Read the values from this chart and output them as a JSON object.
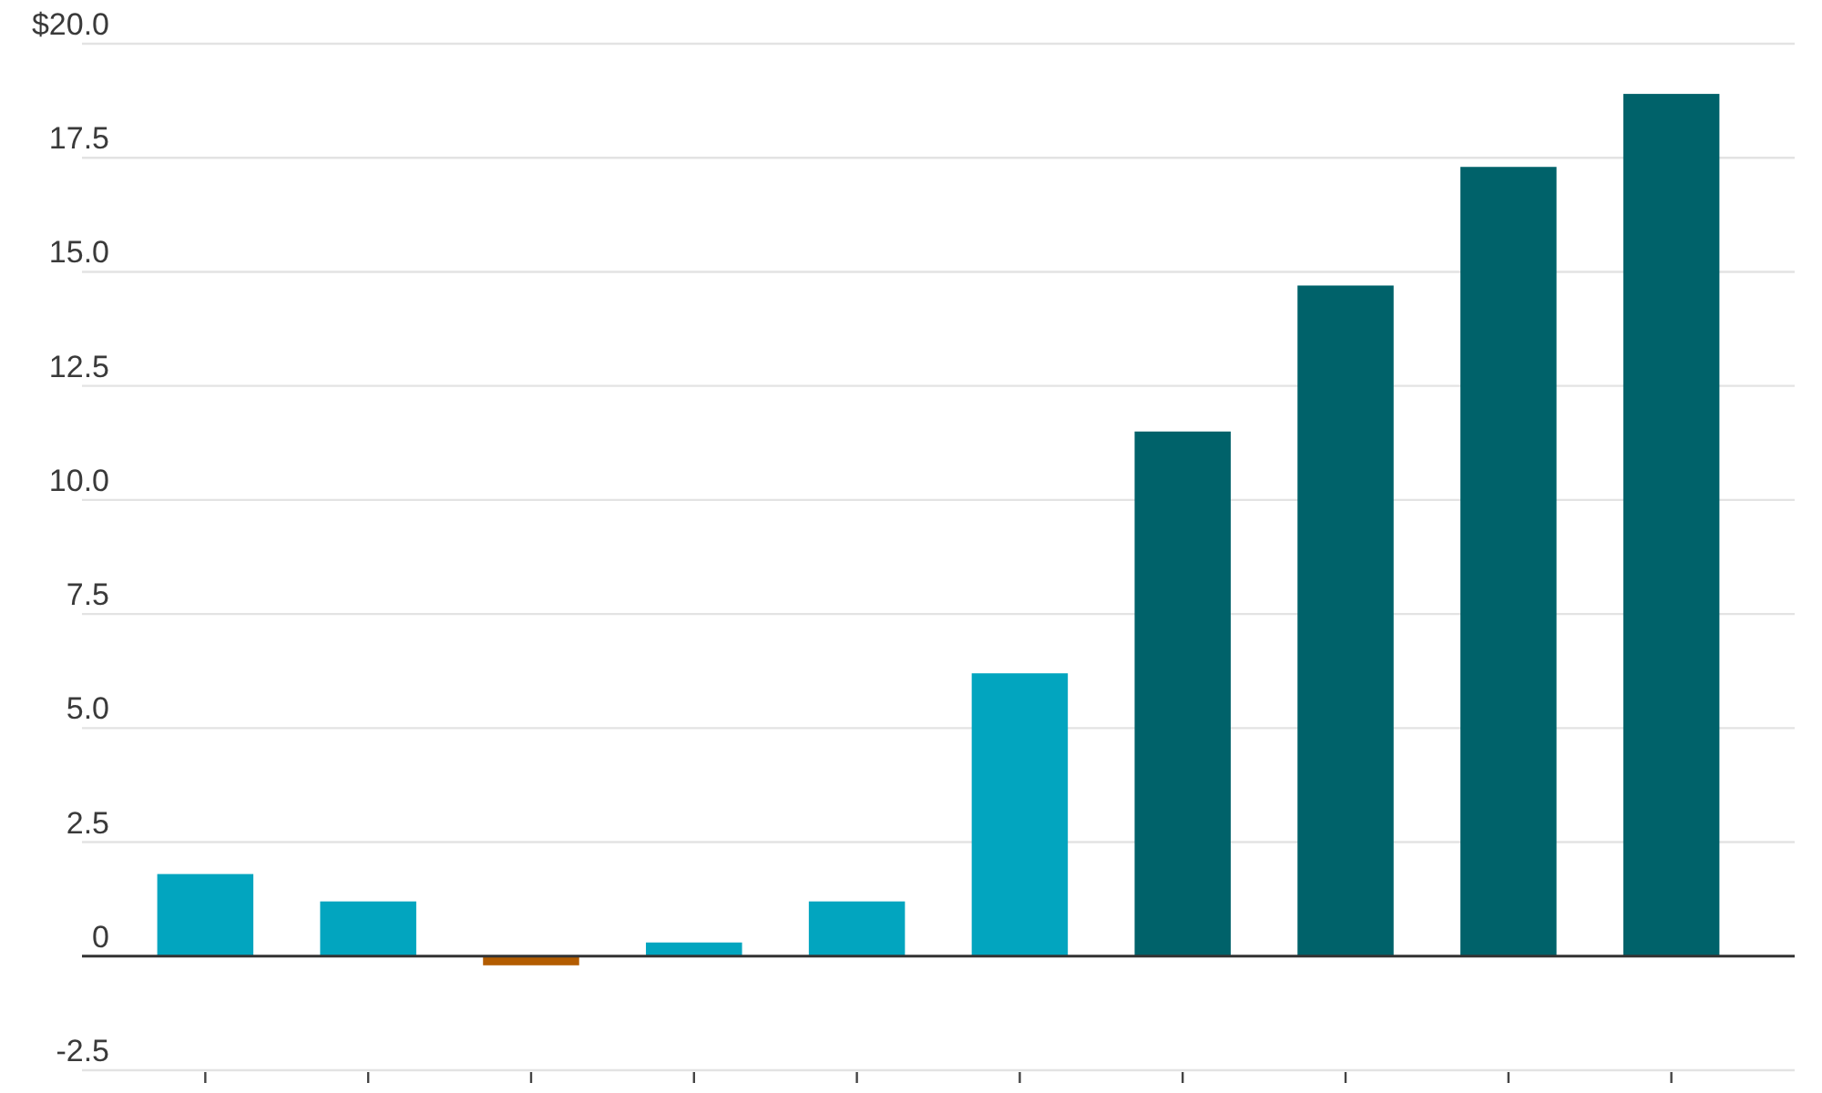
{
  "chart_data": {
    "type": "bar",
    "categories": [
      null,
      null,
      null,
      null,
      null,
      null,
      null,
      null,
      null,
      null
    ],
    "values": [
      1.8,
      1.2,
      -0.2,
      0.3,
      1.2,
      6.2,
      11.5,
      14.7,
      17.3,
      18.9
    ],
    "colors": [
      "#02a5bf",
      "#02a5bf",
      "#b35c00",
      "#02a5bf",
      "#02a5bf",
      "#02a5bf",
      "#00626a",
      "#00626a",
      "#00626a",
      "#00626a"
    ],
    "ylim": [
      -2.5,
      20
    ],
    "yticks": [
      {
        "value": 20,
        "label": "$20.0"
      },
      17.5,
      {
        "value": 15,
        "label": "15.0"
      },
      12.5,
      {
        "value": 10,
        "label": "10.0"
      },
      7.5,
      {
        "value": 5,
        "label": "5.0"
      },
      2.5,
      0,
      -2.5
    ],
    "grid": "y",
    "tick_labels": "y",
    "ref_lines": [
      {
        "axis": "y",
        "value": 0,
        "color": "#333333"
      }
    ]
  }
}
